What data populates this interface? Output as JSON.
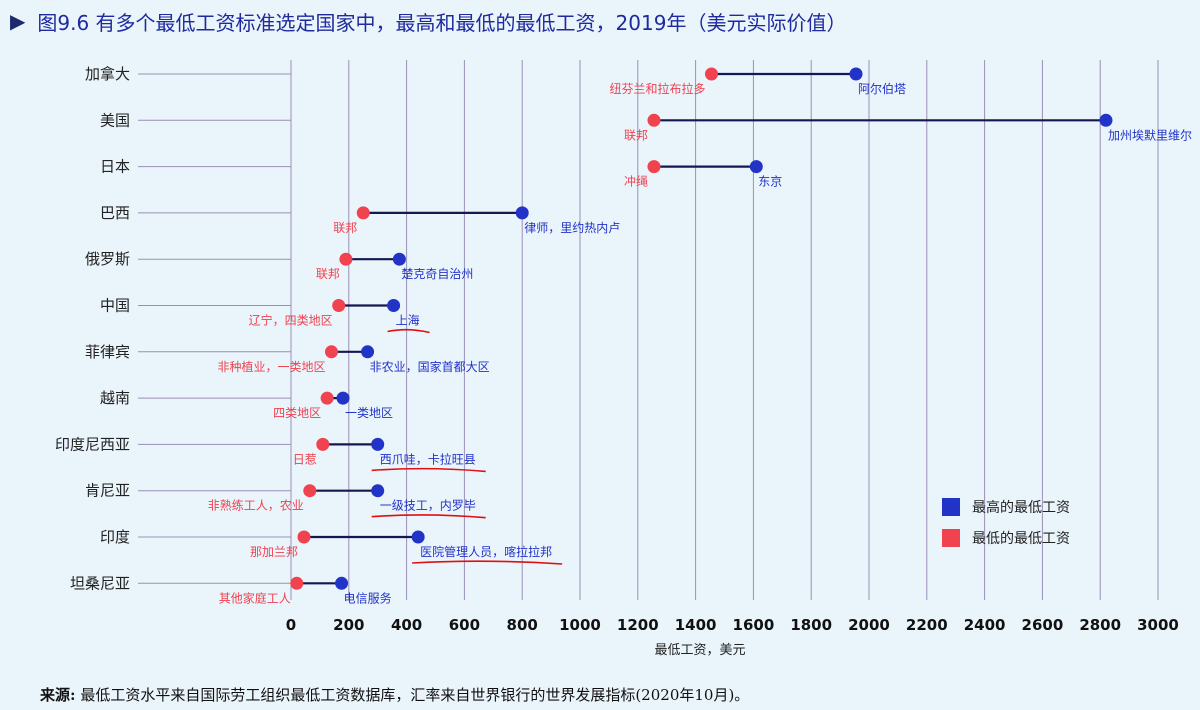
{
  "title": {
    "marker": "▶",
    "text": "图9.6  有多个最低工资标准选定国家中，最高和最低的最低工资，2019年（美元实际价值）"
  },
  "source": {
    "label": "来源:",
    "text": "最低工资水平来自国际劳工组织最低工资数据库，汇率来自世界银行的世界发展指标(2020年10月)。"
  },
  "colors": {
    "high": "#2233c8",
    "low": "#f0424f",
    "line": "#161650",
    "grid": "#9a8fb8",
    "annotation": "#e01010"
  },
  "chart_data": {
    "type": "dumbbell",
    "xlabel": "最低工资，美元",
    "xlim": [
      0,
      3000
    ],
    "xticks": [
      0,
      200,
      400,
      600,
      800,
      1000,
      1200,
      1400,
      1600,
      1800,
      2000,
      2200,
      2400,
      2600,
      2800,
      3000
    ],
    "legend": {
      "position": "bottom-right",
      "entries": [
        {
          "key": "high",
          "label": "最高的最低工资"
        },
        {
          "key": "low",
          "label": "最低的最低工资"
        }
      ]
    },
    "rows": [
      {
        "country": "加拿大",
        "low": 1455,
        "low_label": "纽芬兰和拉布拉多",
        "high": 1955,
        "high_label": "阿尔伯塔"
      },
      {
        "country": "美国",
        "low": 1256,
        "low_label": "联邦",
        "high": 2820,
        "high_label": "加州埃默里维尔"
      },
      {
        "country": "日本",
        "low": 1256,
        "low_label": "冲绳",
        "high": 1610,
        "high_label": "东京"
      },
      {
        "country": "巴西",
        "low": 250,
        "low_label": "联邦",
        "high": 800,
        "high_label": "律师，里约热内卢"
      },
      {
        "country": "俄罗斯",
        "low": 190,
        "low_label": "联邦",
        "high": 375,
        "high_label": "楚克奇自治州"
      },
      {
        "country": "中国",
        "low": 165,
        "low_label": "辽宁，四类地区",
        "high": 355,
        "high_label": "上海",
        "underlined": true
      },
      {
        "country": "菲律宾",
        "low": 140,
        "low_label": "非种植业，一类地区",
        "high": 265,
        "high_label": "非农业，国家首都大区"
      },
      {
        "country": "越南",
        "low": 125,
        "low_label": "四类地区",
        "high": 180,
        "high_label": "一类地区"
      },
      {
        "country": "印度尼西亚",
        "low": 110,
        "low_label": "日惹",
        "high": 300,
        "high_label": "西爪哇，卡拉旺县",
        "underlined": true
      },
      {
        "country": "肯尼亚",
        "low": 65,
        "low_label": "非熟练工人，农业",
        "high": 300,
        "high_label": "一级技工，内罗毕",
        "underlined": true
      },
      {
        "country": "印度",
        "low": 45,
        "low_label": "那加兰邦",
        "high": 440,
        "high_label": "医院管理人员，喀拉拉邦",
        "underlined": true
      },
      {
        "country": "坦桑尼亚",
        "low": 20,
        "low_label": "其他家庭工人",
        "high": 175,
        "high_label": "电信服务"
      }
    ]
  }
}
